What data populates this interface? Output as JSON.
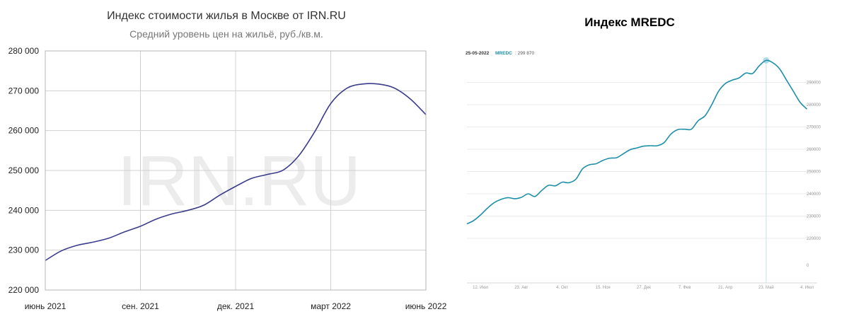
{
  "chart_data": [
    {
      "type": "line",
      "title": "Индекс стоимости жилья в Москве от IRN.RU",
      "subtitle": "Средний уровень цен на жильё, руб./кв.м.",
      "watermark": "IRN.RU",
      "xlabel": "",
      "ylabel": "",
      "ylim": [
        220000,
        280000
      ],
      "y_ticks": [
        {
          "value": 220000,
          "label": "220 000"
        },
        {
          "value": 230000,
          "label": "230 000"
        },
        {
          "value": 240000,
          "label": "240 000"
        },
        {
          "value": 250000,
          "label": "250 000"
        },
        {
          "value": 260000,
          "label": "260 000"
        },
        {
          "value": 270000,
          "label": "270 000"
        },
        {
          "value": 280000,
          "label": "280 000"
        }
      ],
      "x_ticks": [
        {
          "pos": 0,
          "label": "июнь 2021"
        },
        {
          "pos": 3,
          "label": "сен. 2021"
        },
        {
          "pos": 6,
          "label": "дек. 2021"
        },
        {
          "pos": 9,
          "label": "март 2022"
        },
        {
          "pos": 12,
          "label": "июнь 2022"
        }
      ],
      "grid": true,
      "line_color": "#3c3c8c",
      "series": [
        {
          "x": [
            0,
            0.5,
            1,
            1.5,
            2,
            2.5,
            3,
            3.5,
            4,
            4.5,
            5,
            5.5,
            6,
            6.5,
            7,
            7.5,
            8,
            8.5,
            9,
            9.5,
            10,
            10.5,
            11,
            11.5,
            12
          ],
          "values": [
            227400,
            229800,
            231200,
            232000,
            233000,
            234600,
            236000,
            237800,
            239100,
            240000,
            241300,
            243800,
            246000,
            248000,
            249000,
            250100,
            253800,
            259800,
            266800,
            270600,
            271700,
            271700,
            270700,
            268000,
            264000
          ]
        }
      ]
    },
    {
      "type": "line",
      "title": "Индекс MREDC",
      "header_date": "25-05-2022",
      "header_series": "MREDC",
      "header_value": ": 299 870",
      "ylim": [
        200000,
        300000
      ],
      "y_ticks": [
        {
          "value": 220000,
          "label": "220000"
        },
        {
          "value": 230000,
          "label": "230000"
        },
        {
          "value": 240000,
          "label": "240000"
        },
        {
          "value": 250000,
          "label": "250000"
        },
        {
          "value": 260000,
          "label": "260000"
        },
        {
          "value": 270000,
          "label": "270000"
        },
        {
          "value": 280000,
          "label": "280000"
        },
        {
          "value": 290000,
          "label": "290000"
        }
      ],
      "zero_label": "0",
      "x_ticks": [
        {
          "pos": 2,
          "label": "12. Июл"
        },
        {
          "pos": 8,
          "label": "23. Авг"
        },
        {
          "pos": 14,
          "label": "4. Окт"
        },
        {
          "pos": 20,
          "label": "15. Ноя"
        },
        {
          "pos": 26,
          "label": "27. Дек"
        },
        {
          "pos": 32,
          "label": "7. Фев"
        },
        {
          "pos": 38,
          "label": "21. Апр"
        },
        {
          "pos": 44,
          "label": "23. Май"
        },
        {
          "pos": 50,
          "label": "4. Июл"
        }
      ],
      "highlight_pos": 44,
      "line_color": "#1d8fa8",
      "series": [
        {
          "x": [
            0,
            1,
            2,
            3,
            4,
            5,
            6,
            7,
            8,
            9,
            10,
            11,
            12,
            13,
            14,
            15,
            16,
            17,
            18,
            19,
            20,
            21,
            22,
            23,
            24,
            25,
            26,
            27,
            28,
            29,
            30,
            31,
            32,
            33,
            34,
            35,
            36,
            37,
            38,
            39,
            40,
            41,
            42,
            43,
            44,
            45,
            46,
            47,
            48,
            49,
            50
          ],
          "values": [
            226500,
            228000,
            230500,
            233500,
            236000,
            237500,
            238300,
            237800,
            238400,
            240000,
            238800,
            241500,
            243800,
            243600,
            245200,
            245000,
            246500,
            251200,
            253000,
            253500,
            255000,
            256000,
            256200,
            258000,
            259800,
            260600,
            261400,
            261600,
            261600,
            263000,
            266800,
            268800,
            269000,
            269000,
            272800,
            275000,
            280000,
            286000,
            289500,
            291000,
            292000,
            294200,
            294000,
            297500,
            299870,
            298800,
            296000,
            291000,
            286000,
            281000,
            278000
          ]
        }
      ]
    }
  ]
}
